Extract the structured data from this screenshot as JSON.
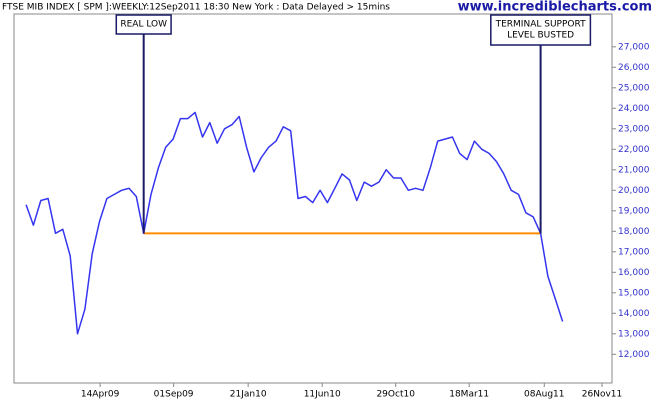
{
  "chart_data": {
    "type": "line",
    "title": "FTSE MIB INDEX [ SPM ]:WEEKLY:12Sep2011 18:30 New York : Data Delayed > 15mins",
    "watermark": "www.incrediblecharts.com",
    "color": "#3535f0",
    "x": [
      "2008-11-24",
      "2008-12-08",
      "2008-12-22",
      "2009-01-05",
      "2009-01-19",
      "2009-02-02",
      "2009-02-16",
      "2009-03-02",
      "2009-03-16",
      "2009-03-30",
      "2009-04-13",
      "2009-04-27",
      "2009-05-11",
      "2009-05-25",
      "2009-06-08",
      "2009-06-22",
      "2009-07-06",
      "2009-07-20",
      "2009-08-03",
      "2009-08-17",
      "2009-08-31",
      "2009-09-14",
      "2009-09-28",
      "2009-10-12",
      "2009-10-26",
      "2009-11-09",
      "2009-11-23",
      "2009-12-07",
      "2009-12-21",
      "2010-01-04",
      "2010-01-18",
      "2010-02-01",
      "2010-02-15",
      "2010-03-01",
      "2010-03-15",
      "2010-03-29",
      "2010-04-12",
      "2010-04-26",
      "2010-05-10",
      "2010-05-24",
      "2010-06-07",
      "2010-06-21",
      "2010-07-05",
      "2010-07-19",
      "2010-08-02",
      "2010-08-16",
      "2010-08-30",
      "2010-09-13",
      "2010-09-27",
      "2010-10-11",
      "2010-10-25",
      "2010-11-08",
      "2010-11-22",
      "2010-12-06",
      "2010-12-20",
      "2011-01-03",
      "2011-01-17",
      "2011-01-31",
      "2011-02-14",
      "2011-02-28",
      "2011-03-14",
      "2011-03-28",
      "2011-04-11",
      "2011-04-25",
      "2011-05-09",
      "2011-05-23",
      "2011-06-06",
      "2011-06-20",
      "2011-07-04",
      "2011-07-18",
      "2011-08-01",
      "2011-08-15",
      "2011-08-29",
      "2011-09-12"
    ],
    "values": [
      19300,
      18300,
      19500,
      19600,
      17900,
      18100,
      16800,
      13000,
      14200,
      16900,
      18500,
      19600,
      19800,
      20000,
      20100,
      19700,
      17900,
      19800,
      21100,
      22100,
      22500,
      23500,
      23500,
      23800,
      22600,
      23300,
      22300,
      23000,
      23200,
      23600,
      22100,
      20900,
      21600,
      22100,
      22400,
      23100,
      22900,
      19600,
      19700,
      19400,
      20000,
      19400,
      20100,
      20800,
      20500,
      19500,
      20400,
      20200,
      20400,
      21000,
      20600,
      20600,
      20000,
      20100,
      20000,
      21100,
      22400,
      22500,
      22600,
      21800,
      21500,
      22400,
      22000,
      21800,
      21400,
      20800,
      20000,
      19800,
      18900,
      18700,
      17900,
      15800,
      14700,
      13600
    ],
    "xlim": [
      "2008-11-01",
      "2011-12-15"
    ],
    "xticks": [
      {
        "value": "2009-04-14",
        "label": "14Apr09"
      },
      {
        "value": "2009-09-01",
        "label": "01Sep09"
      },
      {
        "value": "2010-01-21",
        "label": "21Jan10"
      },
      {
        "value": "2010-06-11",
        "label": "11Jun10"
      },
      {
        "value": "2010-10-29",
        "label": "29Oct10"
      },
      {
        "value": "2011-03-18",
        "label": "18Mar11"
      },
      {
        "value": "2011-08-08",
        "label": "08Aug11"
      },
      {
        "value": "2011-11-26",
        "label": "26Nov11"
      }
    ],
    "ylim": [
      10600,
      28600
    ],
    "yticks": [
      {
        "value": 12000,
        "label": "12,000"
      },
      {
        "value": 13000,
        "label": "13,000"
      },
      {
        "value": 14000,
        "label": "14,000"
      },
      {
        "value": 15000,
        "label": "15,000"
      },
      {
        "value": 16000,
        "label": "16,000"
      },
      {
        "value": 17000,
        "label": "17,000"
      },
      {
        "value": 18000,
        "label": "18,000"
      },
      {
        "value": 19000,
        "label": "19,000"
      },
      {
        "value": 20000,
        "label": "20,000"
      },
      {
        "value": 21000,
        "label": "21,000"
      },
      {
        "value": 22000,
        "label": "22,000"
      },
      {
        "value": 23000,
        "label": "23,000"
      },
      {
        "value": 24000,
        "label": "24,000"
      },
      {
        "value": 25000,
        "label": "25,000"
      },
      {
        "value": 26000,
        "label": "26,000"
      },
      {
        "value": 27000,
        "label": "27,000"
      }
    ],
    "grid": false,
    "reference_lines": [
      {
        "value": 17900,
        "color": "#ff8c00",
        "x_start": "2009-07-06",
        "x_end": "2011-08-01"
      }
    ],
    "annotations": [
      {
        "text": [
          "REAL LOW"
        ],
        "x": "2009-07-06",
        "y": 17900
      },
      {
        "text": [
          "TERMINAL SUPPORT",
          "LEVEL BUSTED"
        ],
        "x": "2011-08-01",
        "y": 17900
      }
    ]
  }
}
